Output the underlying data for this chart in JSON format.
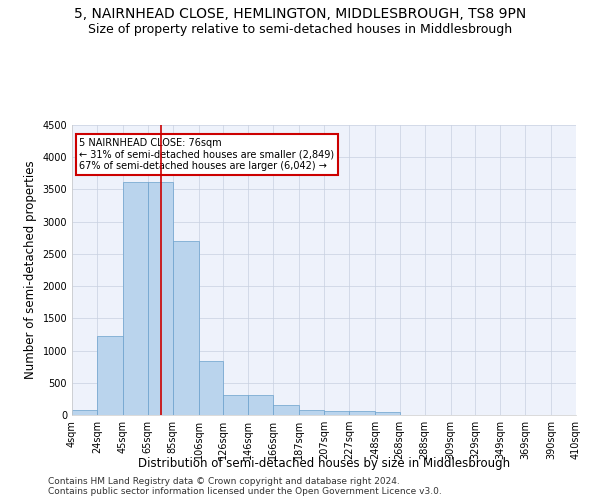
{
  "title": "5, NAIRNHEAD CLOSE, HEMLINGTON, MIDDLESBROUGH, TS8 9PN",
  "subtitle": "Size of property relative to semi-detached houses in Middlesbrough",
  "xlabel": "Distribution of semi-detached houses by size in Middlesbrough",
  "ylabel": "Number of semi-detached properties",
  "footer_line1": "Contains HM Land Registry data © Crown copyright and database right 2024.",
  "footer_line2": "Contains public sector information licensed under the Open Government Licence v3.0.",
  "bin_edges": [
    4,
    24,
    45,
    65,
    85,
    106,
    126,
    146,
    166,
    187,
    207,
    227,
    248,
    268,
    288,
    309,
    329,
    349,
    369,
    390,
    410
  ],
  "bin_labels": [
    "4sqm",
    "24sqm",
    "45sqm",
    "65sqm",
    "85sqm",
    "106sqm",
    "126sqm",
    "146sqm",
    "166sqm",
    "187sqm",
    "207sqm",
    "227sqm",
    "248sqm",
    "268sqm",
    "288sqm",
    "309sqm",
    "329sqm",
    "349sqm",
    "369sqm",
    "390sqm",
    "410sqm"
  ],
  "bar_values": [
    80,
    1230,
    3620,
    3620,
    2700,
    840,
    310,
    310,
    150,
    80,
    65,
    55,
    40,
    0,
    0,
    0,
    0,
    0,
    0,
    0
  ],
  "bar_color": "#bad4ed",
  "bar_edge_color": "#6aa0cc",
  "property_size": 76,
  "property_label": "5 NAIRNHEAD CLOSE: 76sqm",
  "pct_smaller": 31,
  "count_smaller": "2,849",
  "pct_larger": 67,
  "count_larger": "6,042",
  "vline_color": "#cc0000",
  "annotation_box_color": "#cc0000",
  "ylim": [
    0,
    4500
  ],
  "background_color": "#eef2fb",
  "grid_color": "#c8d0e0",
  "title_fontsize": 10,
  "subtitle_fontsize": 9,
  "axis_label_fontsize": 8.5,
  "tick_fontsize": 7,
  "footer_fontsize": 6.5
}
